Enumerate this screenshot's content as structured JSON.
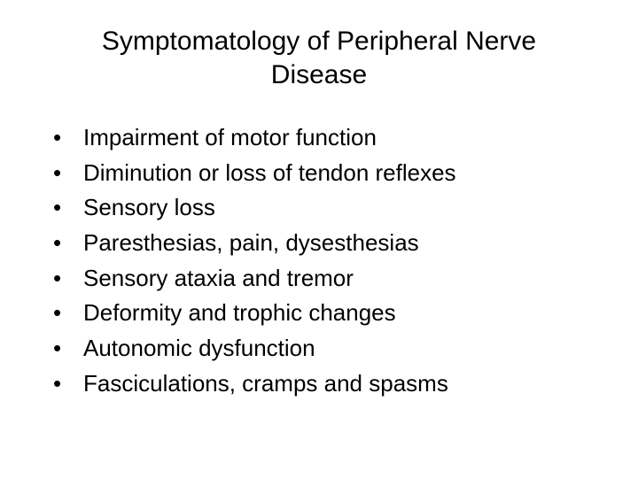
{
  "slide": {
    "title": "Symptomatology of Peripheral Nerve Disease",
    "title_fontsize": 30,
    "title_color": "#000000",
    "background_color": "#ffffff",
    "bullets": [
      "Impairment of motor function",
      "Diminution or loss of tendon reflexes",
      "Sensory loss",
      "Paresthesias, pain, dysesthesias",
      "Sensory ataxia and tremor",
      "Deformity and trophic changes",
      "Autonomic dysfunction",
      "Fasciculations, cramps and spasms"
    ],
    "bullet_fontsize": 26,
    "bullet_color": "#000000",
    "bullet_marker": "•",
    "font_family": "Arial"
  }
}
